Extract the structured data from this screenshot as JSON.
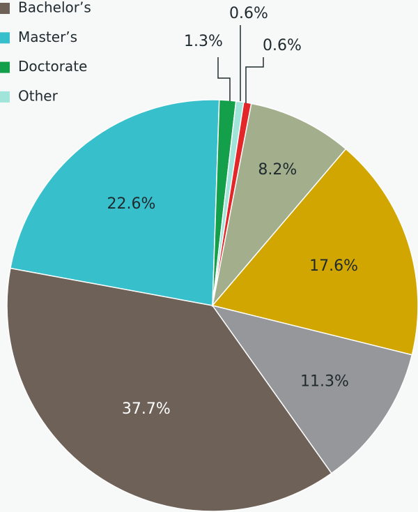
{
  "chart_data": {
    "type": "pie",
    "categories": [
      "Bachelor’s",
      "Master’s",
      "Doctorate",
      "Other",
      null,
      null,
      null,
      null
    ],
    "values": [
      37.7,
      22.6,
      1.3,
      0.6,
      0.6,
      8.2,
      17.6,
      11.3
    ],
    "value_labels": [
      "37.7%",
      "22.6%",
      "1.3%",
      "0.6%",
      "0.6%",
      "8.2%",
      "17.6%",
      "11.3%"
    ],
    "colors": [
      "#6e6158",
      "#37bfcc",
      "#14a04a",
      "#a1e4d9",
      "#e3262a",
      "#a3ae8c",
      "#d2a600",
      "#96979b"
    ],
    "legend": "top-left"
  }
}
